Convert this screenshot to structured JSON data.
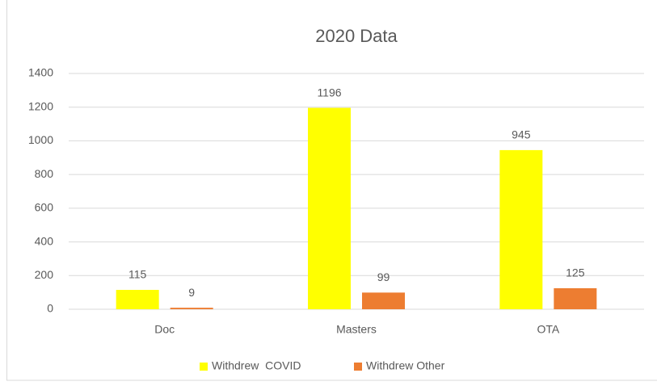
{
  "chart_data": {
    "type": "bar",
    "title": "2020 Data",
    "categories": [
      "Doc",
      "Masters",
      "OTA"
    ],
    "series": [
      {
        "name": "Withdrew  COVID",
        "color": "#ffff00",
        "values": [
          115,
          1196,
          945
        ]
      },
      {
        "name": "Withdrew Other",
        "color": "#ed7d31",
        "values": [
          9,
          99,
          125
        ]
      }
    ],
    "ylim": [
      0,
      1400
    ],
    "yticks": [
      0,
      200,
      400,
      600,
      800,
      1000,
      1200,
      1400
    ],
    "grid": true,
    "legend": "bottom"
  }
}
